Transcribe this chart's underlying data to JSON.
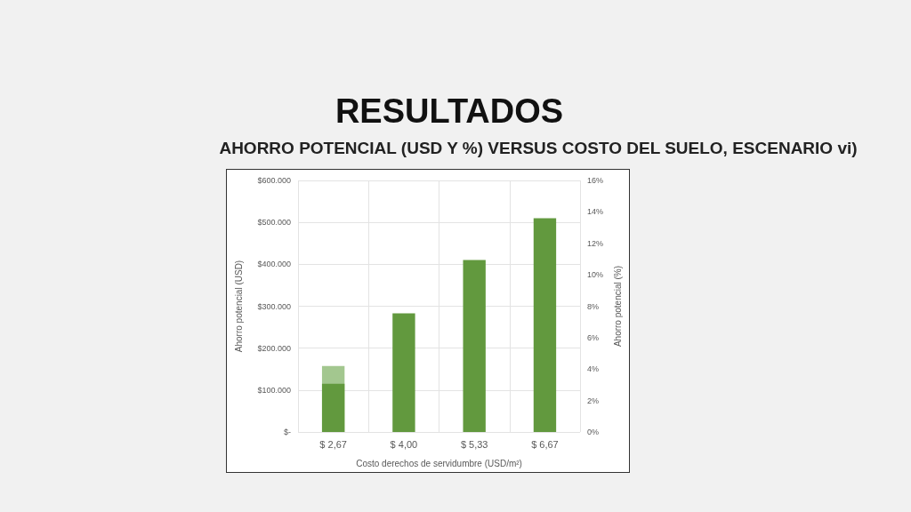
{
  "chart_data": {
    "type": "bar",
    "title": "RESULTADOS",
    "subtitle": "AHORRO POTENCIAL (USD Y %) VERSUS COSTO DEL SUELO, ESCENARIO vi)",
    "xlabel": "Costo derechos de servidumbre (USD/m²)",
    "ylabel": "Ahorro potencial (USD)",
    "y2label": "Ahorro potencial (%)",
    "categories": [
      "$ 2,67",
      "$ 4,00",
      "$ 5,33",
      "$ 6,67"
    ],
    "series": [
      {
        "color": "#a3c78f",
        "values": [
          4.2,
          null,
          null,
          null
        ],
        "axis": "y2"
      },
      {
        "color": "#62993e",
        "values": [
          115000,
          283000,
          410000,
          510000
        ]
      }
    ],
    "ylim": [
      0,
      600000
    ],
    "yticks": [
      {
        "value": 0,
        "label": "$-"
      },
      {
        "value": 100000,
        "label": "$100.000"
      },
      {
        "value": 200000,
        "label": "$200.000"
      },
      {
        "value": 300000,
        "label": "$300.000"
      },
      {
        "value": 400000,
        "label": "$400.000"
      },
      {
        "value": 500000,
        "label": "$500.000"
      },
      {
        "value": 600000,
        "label": "$600.000"
      }
    ],
    "y2lim": [
      0,
      16
    ],
    "y2ticks": [
      {
        "value": 0,
        "label": "0%"
      },
      {
        "value": 2,
        "label": "2%"
      },
      {
        "value": 4,
        "label": "4%"
      },
      {
        "value": 6,
        "label": "6%"
      },
      {
        "value": 8,
        "label": "8%"
      },
      {
        "value": 10,
        "label": "10%"
      },
      {
        "value": 12,
        "label": "12%"
      },
      {
        "value": 14,
        "label": "14%"
      },
      {
        "value": 16,
        "label": "16%"
      }
    ],
    "grid": true
  }
}
